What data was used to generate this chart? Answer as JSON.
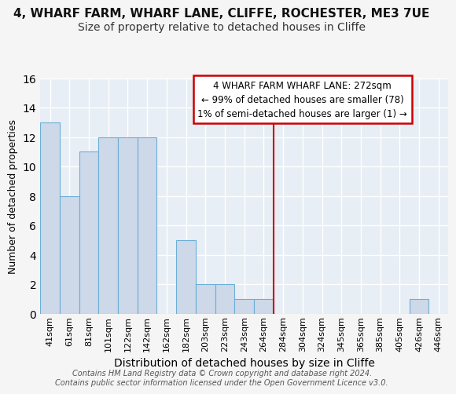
{
  "title1": "4, WHARF FARM, WHARF LANE, CLIFFE, ROCHESTER, ME3 7UE",
  "title2": "Size of property relative to detached houses in Cliffe",
  "xlabel": "Distribution of detached houses by size in Cliffe",
  "ylabel": "Number of detached properties",
  "bin_labels": [
    "41sqm",
    "61sqm",
    "81sqm",
    "101sqm",
    "122sqm",
    "142sqm",
    "162sqm",
    "182sqm",
    "203sqm",
    "223sqm",
    "243sqm",
    "264sqm",
    "284sqm",
    "304sqm",
    "324sqm",
    "345sqm",
    "365sqm",
    "385sqm",
    "405sqm",
    "426sqm",
    "446sqm"
  ],
  "values": [
    13,
    8,
    11,
    12,
    12,
    12,
    0,
    5,
    2,
    2,
    1,
    1,
    0,
    0,
    0,
    0,
    0,
    0,
    0,
    1,
    0
  ],
  "bar_color": "#cdd9e8",
  "bar_edge_color": "#6baed6",
  "red_line_x": 11.5,
  "annotation_text": "4 WHARF FARM WHARF LANE: 272sqm\n← 99% of detached houses are smaller (78)\n1% of semi-detached houses are larger (1) →",
  "annotation_box_color": "#ffffff",
  "annotation_box_edge_color": "#cc0000",
  "footer_text": "Contains HM Land Registry data © Crown copyright and database right 2024.\nContains public sector information licensed under the Open Government Licence v3.0.",
  "ylim": [
    0,
    16
  ],
  "yticks": [
    0,
    2,
    4,
    6,
    8,
    10,
    12,
    14,
    16
  ],
  "plot_bg_color": "#e8eef5",
  "fig_bg_color": "#f5f5f5",
  "grid_color": "#ffffff",
  "title1_fontsize": 11,
  "title2_fontsize": 10,
  "xlabel_fontsize": 10,
  "ylabel_fontsize": 9,
  "tick_fontsize": 8,
  "footer_fontsize": 7
}
